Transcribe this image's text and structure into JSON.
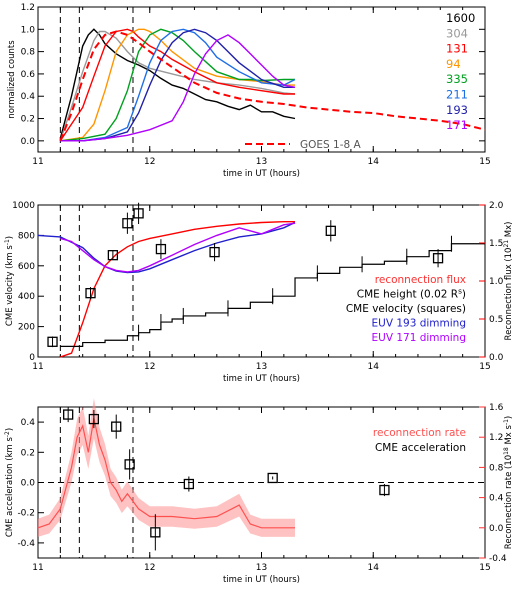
{
  "chart_data": [
    {
      "type": "line",
      "xlabel": "time in UT (hours)",
      "ylabel": "normalized counts",
      "xlim": [
        11,
        15
      ],
      "ylim": [
        -0.1,
        1.2
      ],
      "xticks": [
        "11",
        "12",
        "13",
        "14",
        "15"
      ],
      "yticks": [
        "0.0",
        "0.2",
        "0.4",
        "0.6",
        "0.8",
        "1.0",
        "1.2"
      ],
      "vlines": [
        11.2,
        11.37,
        11.85
      ],
      "series": [
        {
          "name": "1600",
          "color": "#000000",
          "x": [
            11.2,
            11.3,
            11.4,
            11.45,
            11.5,
            11.55,
            11.6,
            11.7,
            11.8,
            11.9,
            12.0,
            12.1,
            12.2,
            12.3,
            12.4,
            12.5,
            12.6,
            12.7,
            12.8,
            12.9,
            13.0,
            13.1,
            13.2,
            13.3
          ],
          "y": [
            0.02,
            0.4,
            0.85,
            0.95,
            1.0,
            0.95,
            0.87,
            0.78,
            0.72,
            0.68,
            0.63,
            0.56,
            0.5,
            0.47,
            0.42,
            0.37,
            0.35,
            0.31,
            0.28,
            0.32,
            0.26,
            0.26,
            0.22,
            0.2
          ]
        },
        {
          "name": "304",
          "color": "#9a9a9a",
          "x": [
            11.2,
            11.3,
            11.4,
            11.5,
            11.55,
            11.6,
            11.7,
            11.8,
            11.9,
            12.0,
            12.2,
            12.4,
            12.6,
            12.8,
            13.0,
            13.2,
            13.3
          ],
          "y": [
            0.0,
            0.3,
            0.62,
            0.9,
            0.98,
            0.98,
            0.92,
            0.8,
            0.7,
            0.65,
            0.6,
            0.55,
            0.52,
            0.5,
            0.47,
            0.43,
            0.42
          ]
        },
        {
          "name": "131",
          "color": "#ff0000",
          "x": [
            11.2,
            11.4,
            11.5,
            11.6,
            11.7,
            11.8,
            11.85,
            11.9,
            12.0,
            12.1,
            12.2,
            12.4,
            12.6,
            12.8,
            13.0,
            13.2,
            13.3
          ],
          "y": [
            0.0,
            0.3,
            0.58,
            0.85,
            0.98,
            1.0,
            0.98,
            0.93,
            0.85,
            0.8,
            0.73,
            0.62,
            0.52,
            0.48,
            0.45,
            0.42,
            0.42
          ]
        },
        {
          "name": "94",
          "color": "#ff9500",
          "x": [
            11.2,
            11.4,
            11.5,
            11.6,
            11.7,
            11.8,
            11.9,
            11.95,
            12.0,
            12.1,
            12.2,
            12.4,
            12.6,
            12.8,
            13.0,
            13.2,
            13.3
          ],
          "y": [
            0.0,
            0.03,
            0.15,
            0.45,
            0.8,
            0.95,
            1.0,
            1.0,
            0.98,
            0.9,
            0.8,
            0.65,
            0.58,
            0.55,
            0.53,
            0.5,
            0.5
          ]
        },
        {
          "name": "335",
          "color": "#00a020",
          "x": [
            11.2,
            11.4,
            11.6,
            11.7,
            11.8,
            11.9,
            12.0,
            12.1,
            12.2,
            12.3,
            12.4,
            12.6,
            12.8,
            12.9,
            13.0,
            13.2,
            13.3
          ],
          "y": [
            0.0,
            0.02,
            0.06,
            0.2,
            0.45,
            0.8,
            0.95,
            1.0,
            0.97,
            0.9,
            0.8,
            0.62,
            0.55,
            0.55,
            0.54,
            0.55,
            0.55
          ]
        },
        {
          "name": "211",
          "color": "#1e6ee6",
          "x": [
            11.2,
            11.4,
            11.6,
            11.8,
            11.9,
            12.0,
            12.1,
            12.2,
            12.3,
            12.4,
            12.5,
            12.6,
            12.8,
            13.0,
            13.2,
            13.3
          ],
          "y": [
            0.0,
            0.0,
            0.03,
            0.12,
            0.4,
            0.7,
            0.9,
            0.98,
            1.0,
            0.97,
            0.88,
            0.75,
            0.62,
            0.52,
            0.5,
            0.55
          ]
        },
        {
          "name": "193",
          "color": "#2020aa",
          "x": [
            11.2,
            11.4,
            11.6,
            11.8,
            11.9,
            12.0,
            12.1,
            12.2,
            12.3,
            12.4,
            12.5,
            12.6,
            12.7,
            12.8,
            13.0,
            13.2,
            13.3
          ],
          "y": [
            0.0,
            0.0,
            0.02,
            0.08,
            0.25,
            0.5,
            0.72,
            0.88,
            0.97,
            1.0,
            0.97,
            0.9,
            0.8,
            0.7,
            0.55,
            0.48,
            0.48
          ]
        },
        {
          "name": "171",
          "color": "#b000ff",
          "x": [
            11.2,
            11.4,
            11.6,
            11.8,
            12.0,
            12.2,
            12.3,
            12.4,
            12.5,
            12.6,
            12.7,
            12.8,
            12.9,
            13.0,
            13.1,
            13.2,
            13.3
          ],
          "y": [
            0.0,
            0.0,
            0.02,
            0.05,
            0.1,
            0.18,
            0.35,
            0.6,
            0.78,
            0.9,
            0.95,
            0.88,
            0.78,
            0.68,
            0.58,
            0.5,
            0.48
          ]
        },
        {
          "name": "GOES 1-8 A",
          "color": "#ff0000",
          "dashed": true,
          "x": [
            11.2,
            11.3,
            11.4,
            11.5,
            11.6,
            11.7,
            11.8,
            11.9,
            12.0,
            12.2,
            12.4,
            12.6,
            12.8,
            13.0,
            13.2,
            13.4,
            13.6,
            13.8,
            14.0,
            14.2,
            14.4,
            14.6,
            14.8,
            15.0
          ],
          "y": [
            0.0,
            0.25,
            0.55,
            0.82,
            0.95,
            0.98,
            0.95,
            0.88,
            0.8,
            0.66,
            0.52,
            0.43,
            0.38,
            0.35,
            0.33,
            0.3,
            0.28,
            0.26,
            0.25,
            0.22,
            0.2,
            0.18,
            0.15,
            0.1
          ]
        }
      ]
    },
    {
      "type": "line",
      "xlabel": "time in UT (hours)",
      "ylabel": "CME velocity (km s$^{-1}$)",
      "ylabel_html": [
        "CME velocity (km s",
        "-1",
        ")"
      ],
      "y2label_parts": [
        "Reconnection flux (10",
        "21",
        " Mx)"
      ],
      "xlim": [
        11,
        15
      ],
      "ylim": [
        0,
        1000
      ],
      "y2lim": [
        0,
        2.0
      ],
      "xticks": [
        "11",
        "12",
        "13",
        "14",
        "15"
      ],
      "yticks": [
        "0",
        "200",
        "400",
        "600",
        "800",
        "1000"
      ],
      "y2ticks": [
        "0.0",
        "0.5",
        "1.0",
        "1.5",
        "2.0"
      ],
      "vlines": [
        11.2,
        11.37,
        11.85
      ],
      "legend": [
        {
          "text": "reconnection flux",
          "color": "#ff3030"
        },
        {
          "text_parts": [
            "CME height (0.02 R",
            "s",
            ")"
          ],
          "color": "#000000"
        },
        {
          "text": "CME velocity (squares)",
          "color": "#000000"
        },
        {
          "text": "EUV 193 dimming",
          "color": "#2020cc"
        },
        {
          "text": "EUV 171 dimming",
          "color": "#b000ff"
        }
      ],
      "series": [
        {
          "name": "reconnection flux",
          "axis": "y2",
          "color": "#ff0000",
          "x": [
            11.2,
            11.3,
            11.4,
            11.5,
            11.6,
            11.7,
            11.8,
            11.9,
            12.0,
            12.2,
            12.4,
            12.6,
            12.8,
            13.0,
            13.2,
            13.3
          ],
          "y": [
            0.0,
            0.05,
            0.45,
            0.9,
            1.2,
            1.35,
            1.45,
            1.52,
            1.56,
            1.62,
            1.68,
            1.72,
            1.75,
            1.77,
            1.78,
            1.78
          ]
        },
        {
          "name": "EUV 193 dimming",
          "color": "#2020cc",
          "x": [
            11.0,
            11.2,
            11.4,
            11.5,
            11.6,
            11.7,
            11.8,
            11.9,
            12.0,
            12.2,
            12.4,
            12.6,
            12.8,
            13.0,
            13.2,
            13.3
          ],
          "y": [
            800,
            790,
            720,
            650,
            595,
            565,
            555,
            560,
            580,
            640,
            700,
            750,
            790,
            810,
            850,
            885
          ]
        },
        {
          "name": "EUV 171 dimming",
          "color": "#b000ff",
          "x": [
            11.2,
            11.3,
            11.4,
            11.5,
            11.6,
            11.7,
            11.8,
            11.9,
            12.0,
            12.2,
            12.4,
            12.6,
            12.8,
            13.0,
            13.2,
            13.3
          ],
          "y": [
            780,
            760,
            700,
            640,
            595,
            570,
            560,
            570,
            600,
            670,
            740,
            800,
            850,
            810,
            870,
            880
          ]
        }
      ],
      "cme_height": {
        "name": "CME height",
        "color": "#000000",
        "x": [
          11.2,
          11.4,
          11.6,
          11.8,
          11.9,
          12.0,
          12.1,
          12.2,
          12.3,
          12.5,
          12.7,
          12.9,
          13.1,
          13.3,
          13.5,
          13.7,
          13.9,
          14.1,
          14.3,
          14.5,
          14.7,
          15.0
        ],
        "y": [
          70,
          95,
          110,
          140,
          160,
          180,
          230,
          250,
          270,
          290,
          320,
          360,
          400,
          520,
          550,
          590,
          610,
          630,
          660,
          700,
          745,
          745
        ]
      },
      "cme_velocity_squares": {
        "name": "CME velocity (squares)",
        "x": [
          11.13,
          11.47,
          11.67,
          11.8,
          11.9,
          12.1,
          12.58,
          13.62,
          14.58
        ],
        "y": [
          100,
          420,
          670,
          880,
          945,
          710,
          690,
          830,
          650
        ],
        "yerr": [
          35,
          40,
          30,
          70,
          70,
          65,
          60,
          70,
          60
        ]
      }
    },
    {
      "type": "line",
      "xlabel": "time in UT (hours)",
      "ylabel_parts": [
        "CME acceleration (km s",
        "-2",
        ")"
      ],
      "y2label_parts": [
        "Reconnection rate (10",
        "18",
        " Mx s",
        "-1",
        ")"
      ],
      "xlim": [
        11,
        15
      ],
      "ylim": [
        -0.5,
        0.5
      ],
      "y2lim": [
        -0.4,
        1.6
      ],
      "xticks": [
        "11",
        "12",
        "13",
        "14",
        "15"
      ],
      "yticks": [
        "-0.4",
        "-0.2",
        "0.0",
        "0.2",
        "0.4"
      ],
      "y2ticks": [
        "-0.4",
        "0.0",
        "0.4",
        "0.8",
        "1.2",
        "1.6"
      ],
      "vlines": [
        11.2,
        11.37,
        11.85
      ],
      "hline": 0.0,
      "legend": [
        {
          "text": "reconnection rate",
          "color": "#ff5050"
        },
        {
          "text": "CME acceleration",
          "color": "#000000"
        }
      ],
      "series": [
        {
          "name": "reconnection rate",
          "axis": "y2",
          "color": "#ff5050",
          "x": [
            11.0,
            11.1,
            11.2,
            11.3,
            11.35,
            11.4,
            11.45,
            11.5,
            11.55,
            11.6,
            11.65,
            11.7,
            11.75,
            11.8,
            11.9,
            12.0,
            12.2,
            12.4,
            12.6,
            12.8,
            12.9,
            13.0,
            13.2,
            13.3
          ],
          "y": [
            0.0,
            0.05,
            0.25,
            0.8,
            1.2,
            1.35,
            1.0,
            1.45,
            1.1,
            0.9,
            0.6,
            0.5,
            0.35,
            0.45,
            0.25,
            0.15,
            0.15,
            0.12,
            0.15,
            0.3,
            0.05,
            0.0,
            0.0,
            0.0
          ]
        }
      ],
      "cme_acceleration": {
        "name": "CME acceleration",
        "x": [
          11.27,
          11.5,
          11.7,
          11.82,
          12.05,
          12.35,
          13.1,
          14.1
        ],
        "y": [
          0.45,
          0.42,
          0.37,
          0.12,
          -0.33,
          -0.01,
          0.03,
          -0.05
        ],
        "yerr": [
          0.05,
          0.06,
          0.08,
          0.1,
          0.12,
          0.05,
          0.01,
          0.04
        ]
      }
    }
  ]
}
